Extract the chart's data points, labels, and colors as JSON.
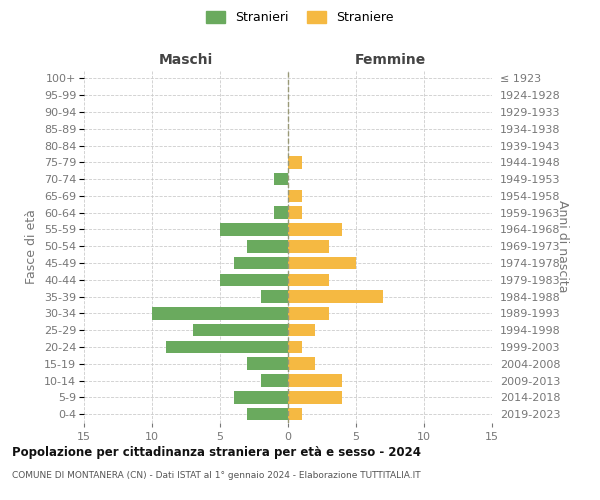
{
  "age_groups": [
    "0-4",
    "5-9",
    "10-14",
    "15-19",
    "20-24",
    "25-29",
    "30-34",
    "35-39",
    "40-44",
    "45-49",
    "50-54",
    "55-59",
    "60-64",
    "65-69",
    "70-74",
    "75-79",
    "80-84",
    "85-89",
    "90-94",
    "95-99",
    "100+"
  ],
  "birth_years": [
    "2019-2023",
    "2014-2018",
    "2009-2013",
    "2004-2008",
    "1999-2003",
    "1994-1998",
    "1989-1993",
    "1984-1988",
    "1979-1983",
    "1974-1978",
    "1969-1973",
    "1964-1968",
    "1959-1963",
    "1954-1958",
    "1949-1953",
    "1944-1948",
    "1939-1943",
    "1934-1938",
    "1929-1933",
    "1924-1928",
    "≤ 1923"
  ],
  "maschi": [
    3,
    4,
    2,
    3,
    9,
    7,
    10,
    2,
    5,
    4,
    3,
    5,
    1,
    0,
    1,
    0,
    0,
    0,
    0,
    0,
    0
  ],
  "femmine": [
    1,
    4,
    4,
    2,
    1,
    2,
    3,
    7,
    3,
    5,
    3,
    4,
    1,
    1,
    0,
    1,
    0,
    0,
    0,
    0,
    0
  ],
  "color_maschi": "#6aaa5e",
  "color_femmine": "#f5b942",
  "xlim": 15,
  "title": "Popolazione per cittadinanza straniera per età e sesso - 2024",
  "subtitle": "COMUNE DI MONTANERA (CN) - Dati ISTAT al 1° gennaio 2024 - Elaborazione TUTTITALIA.IT",
  "label_maschi": "Stranieri",
  "label_femmine": "Straniere",
  "xlabel_left": "Maschi",
  "xlabel_right": "Femmine",
  "ylabel_left": "Fasce di età",
  "ylabel_right": "Anni di nascita",
  "bg_color": "#ffffff",
  "grid_color": "#cccccc",
  "tick_color": "#777777",
  "dashed_line_color": "#999977"
}
